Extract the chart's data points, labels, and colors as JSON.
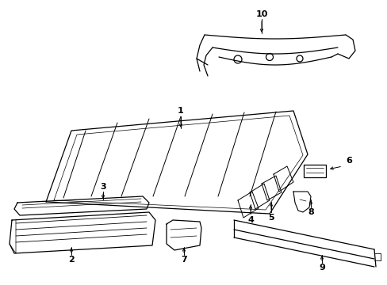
{
  "background_color": "#ffffff",
  "line_color": "#000000",
  "figsize": [
    4.89,
    3.6
  ],
  "dpi": 100,
  "lw": 0.9
}
